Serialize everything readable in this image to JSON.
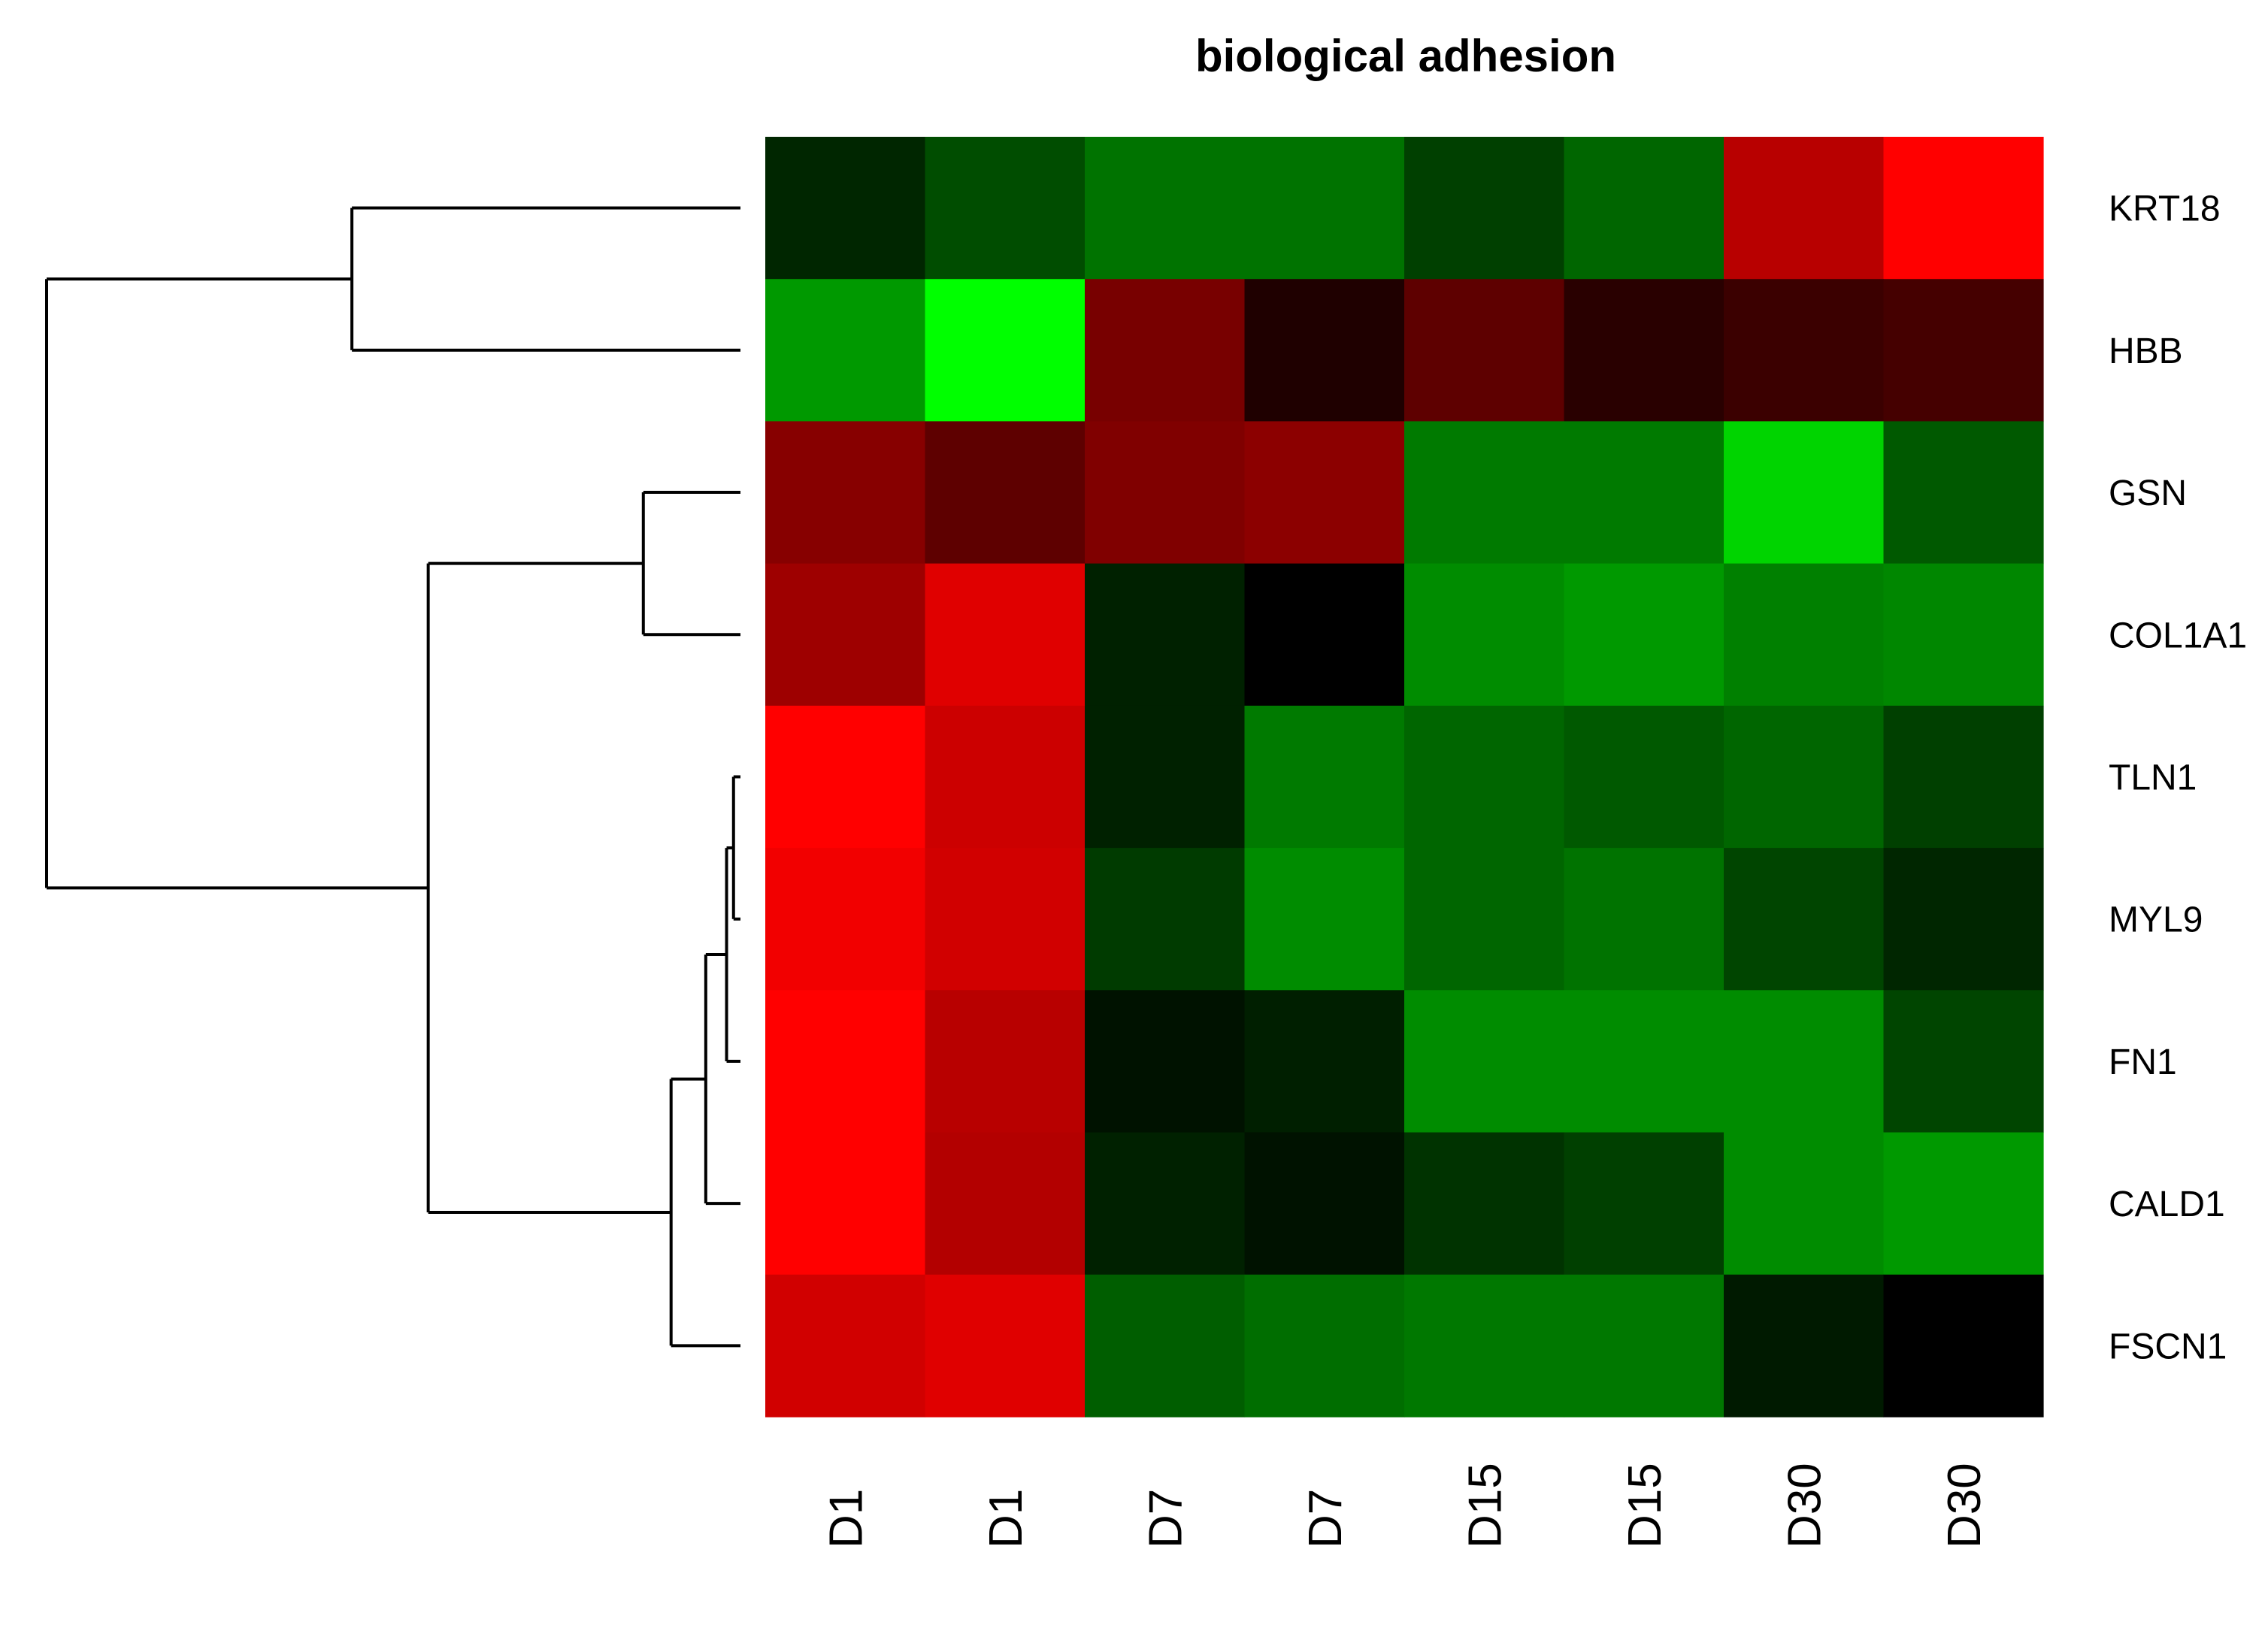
{
  "chart_data": {
    "type": "heatmap",
    "title": "biological adhesion",
    "rows": [
      "KRT18",
      "HBB",
      "GSN",
      "COL1A1",
      "TLN1",
      "MYL9",
      "FN1",
      "CALD1",
      "FSCN1"
    ],
    "columns": [
      "D1",
      "D1",
      "D7",
      "D7",
      "D15",
      "D15",
      "D30",
      "D30"
    ],
    "values": [
      [
        -0.15,
        -0.3,
        -0.45,
        -0.45,
        -0.25,
        -0.4,
        0.72,
        1.0
      ],
      [
        -0.6,
        -1.0,
        0.47,
        0.12,
        0.37,
        0.16,
        0.23,
        0.27
      ],
      [
        0.53,
        0.37,
        0.5,
        0.55,
        -0.48,
        -0.48,
        -0.83,
        -0.35
      ],
      [
        0.62,
        0.88,
        -0.13,
        0.0,
        -0.55,
        -0.6,
        -0.5,
        -0.53
      ],
      [
        1.0,
        0.8,
        -0.13,
        -0.48,
        -0.4,
        -0.35,
        -0.4,
        -0.25
      ],
      [
        0.95,
        0.82,
        -0.23,
        -0.55,
        -0.4,
        -0.45,
        -0.27,
        -0.15
      ],
      [
        1.0,
        0.72,
        -0.07,
        -0.12,
        -0.55,
        -0.55,
        -0.55,
        -0.27
      ],
      [
        1.0,
        0.7,
        -0.13,
        -0.07,
        -0.2,
        -0.25,
        -0.55,
        -0.6
      ],
      [
        0.82,
        0.88,
        -0.37,
        -0.43,
        -0.47,
        -0.47,
        -0.1,
        0.0
      ]
    ],
    "color_scale": {
      "low": "#00ff00",
      "mid": "#000000",
      "high": "#ff0000"
    },
    "row_dendrogram": {
      "merges": [
        {
          "left": "KRT18",
          "right": "HBB",
          "height": 0.56
        },
        {
          "left": "GSN",
          "right": "COL1A1",
          "height": 0.14
        },
        {
          "left": "TLN1",
          "right": "MYL9",
          "height": 0.01
        },
        {
          "left": "TLN1+MYL9",
          "right": "FN1",
          "height": 0.02
        },
        {
          "left": "TLN1+MYL9+FN1",
          "right": "CALD1",
          "height": 0.05
        },
        {
          "left": "TLN1+MYL9+FN1+CALD1",
          "right": "FSCN1",
          "height": 0.1
        },
        {
          "left": "GSN+COL1A1",
          "right": "TLN1+MYL9+FN1+CALD1+FSCN1",
          "height": 0.45
        },
        {
          "left": "KRT18+HBB",
          "right": "GSN+COL1A1+TLN1+MYL9+FN1+CALD1+FSCN1",
          "height": 1.0
        }
      ]
    }
  }
}
